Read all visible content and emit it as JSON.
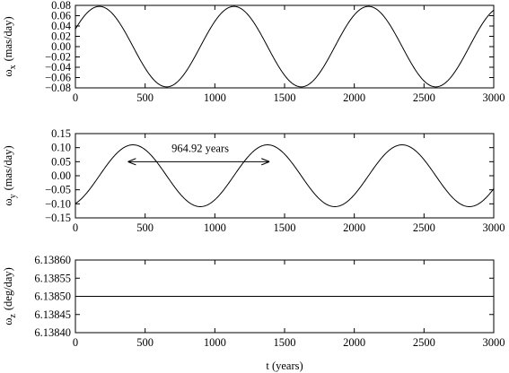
{
  "chart_data": [
    {
      "type": "line",
      "id": "wx",
      "ylabel": {
        "symbol": "ω",
        "sub": "x",
        "unit": "(mas/day)"
      },
      "xlim": [
        0,
        3000
      ],
      "ylim": [
        -0.08,
        0.08
      ],
      "xticks": [
        0,
        500,
        1000,
        1500,
        2000,
        2500,
        3000
      ],
      "xtick_labels": [
        "0",
        "500",
        "1000",
        "1500",
        "2000",
        "2500",
        "3000"
      ],
      "yticks": [
        -0.08,
        -0.06,
        -0.04,
        -0.02,
        0.0,
        0.02,
        0.04,
        0.06,
        0.08
      ],
      "ytick_labels": [
        "−0.08",
        "−0.06",
        "−0.04",
        "−0.02",
        "0.00",
        "0.02",
        "0.04",
        "0.06",
        "0.08"
      ],
      "series": [
        {
          "function": "sinusoid",
          "amplitude": 0.078,
          "period": 964.92,
          "peak_t": 172,
          "offset": 0
        }
      ]
    },
    {
      "type": "line",
      "id": "wy",
      "ylabel": {
        "symbol": "ω",
        "sub": "y",
        "unit": "(mas/day)"
      },
      "xlim": [
        0,
        3000
      ],
      "ylim": [
        -0.15,
        0.15
      ],
      "xticks": [
        0,
        500,
        1000,
        1500,
        2000,
        2500,
        3000
      ],
      "xtick_labels": [
        "0",
        "500",
        "1000",
        "1500",
        "2000",
        "2500",
        "3000"
      ],
      "yticks": [
        -0.15,
        -0.1,
        -0.05,
        0.0,
        0.05,
        0.1,
        0.15
      ],
      "ytick_labels": [
        "−0.15",
        "−0.10",
        "−0.05",
        "0.00",
        "0.05",
        "0.10",
        "0.15"
      ],
      "series": [
        {
          "function": "sinusoid",
          "amplitude": 0.11,
          "period": 964.92,
          "peak_t": 413,
          "offset": 0
        }
      ],
      "annotation": {
        "text": "964.92 years",
        "arrow_from": [
          376,
          0.05
        ],
        "arrow_to": [
          1392,
          0.05
        ],
        "text_at": [
          895,
          0.085
        ]
      }
    },
    {
      "type": "line",
      "id": "wz",
      "ylabel": {
        "symbol": "ω",
        "sub": "z",
        "unit": "(deg/day)"
      },
      "xlabel": "t (years)",
      "xlim": [
        0,
        3000
      ],
      "ylim": [
        6.1384,
        6.1386
      ],
      "xticks": [
        0,
        500,
        1000,
        1500,
        2000,
        2500,
        3000
      ],
      "xtick_labels": [
        "0",
        "500",
        "1000",
        "1500",
        "2000",
        "2500",
        "3000"
      ],
      "yticks": [
        6.1384,
        6.13845,
        6.1385,
        6.13855,
        6.1386
      ],
      "ytick_labels": [
        "6.13840",
        "6.13845",
        "6.13850",
        "6.13855",
        "6.13860"
      ],
      "series": [
        {
          "function": "constant",
          "value": 6.1385
        }
      ]
    }
  ]
}
